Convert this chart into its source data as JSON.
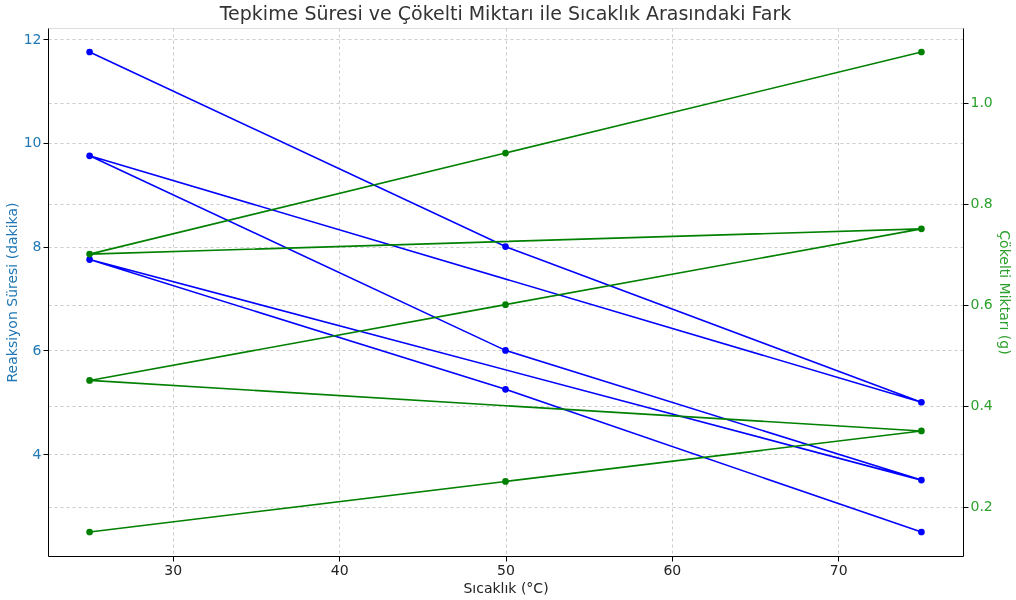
{
  "chart_data": {
    "type": "line",
    "title": "Tepkime Süresi ve Çökelti Miktarı ile Sıcaklık Arasındaki Fark",
    "xlabel": "Sıcaklık (°C)",
    "ylabel": "Reaksiyon Süresi (dakika)",
    "y2label": "Çökelti Miktarı (g)",
    "series": [
      {
        "color": "#0000ff",
        "x": [
          25,
          50,
          75,
          25,
          50,
          75,
          25,
          50,
          75
        ],
        "values": [
          11.75,
          8,
          5,
          9.75,
          6,
          3.5,
          7.75,
          5.25,
          2.5
        ]
      },
      {
        "color": "#008000",
        "axis": "y2",
        "x": [
          25,
          50,
          75,
          25,
          50,
          75,
          25,
          50,
          75
        ],
        "values": [
          0.15,
          0.25,
          0.35,
          0.45,
          0.6,
          0.75,
          0.7,
          0.9,
          1.1
        ]
      }
    ],
    "xlim": [
      22.5,
      77.5
    ],
    "xticks": [
      30,
      40,
      50,
      60,
      70
    ],
    "ylim": [
      2.0375,
      12.2125
    ],
    "yticks": [
      4,
      6,
      8,
      10,
      12
    ],
    "y2lim": [
      0.1025,
      1.1475
    ],
    "y2ticks": [
      0.2,
      0.4,
      0.6,
      0.8,
      {
        "value": 1,
        "label": "1.0"
      }
    ],
    "grid": true,
    "marker": "circle",
    "line_style": "solid"
  }
}
